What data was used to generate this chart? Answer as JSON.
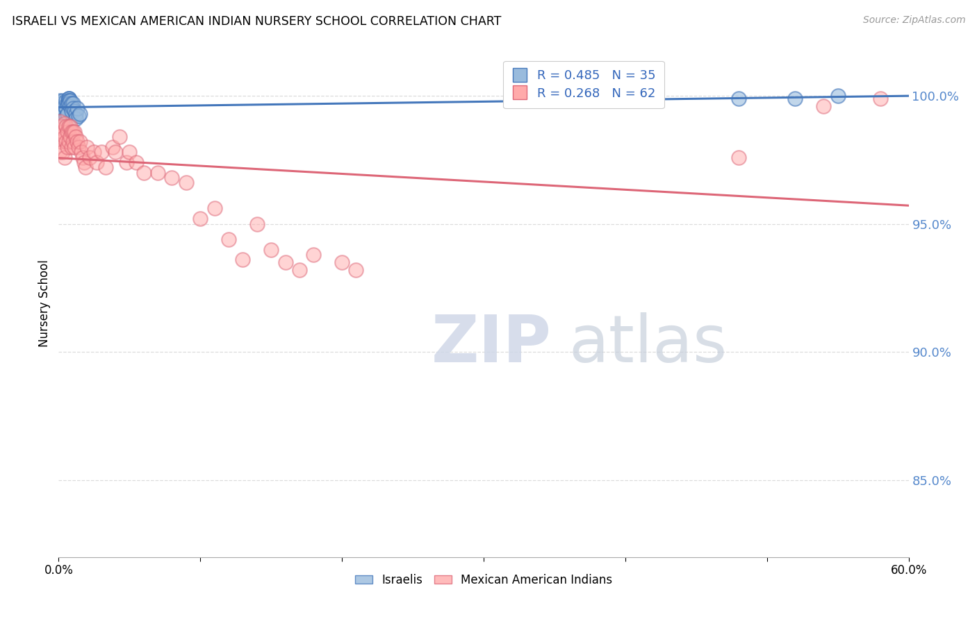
{
  "title": "ISRAELI VS MEXICAN AMERICAN INDIAN NURSERY SCHOOL CORRELATION CHART",
  "source": "Source: ZipAtlas.com",
  "ylabel": "Nursery School",
  "xmin": 0.0,
  "xmax": 0.6,
  "ymin": 0.82,
  "ymax": 1.018,
  "yticks": [
    0.85,
    0.9,
    0.95,
    1.0
  ],
  "ytick_labels": [
    "85.0%",
    "90.0%",
    "95.0%",
    "100.0%"
  ],
  "legend_r1": "R = 0.485   N = 35",
  "legend_r2": "R = 0.268   N = 62",
  "legend_label1": "Israelis",
  "legend_label2": "Mexican American Indians",
  "blue_color": "#99BBDD",
  "pink_color": "#FFAAAA",
  "blue_line_color": "#4477BB",
  "pink_line_color": "#DD6677",
  "watermark_zip": "ZIP",
  "watermark_atlas": "atlas",
  "israelis_x": [
    0.001,
    0.001,
    0.002,
    0.002,
    0.003,
    0.003,
    0.004,
    0.004,
    0.005,
    0.005,
    0.005,
    0.006,
    0.006,
    0.007,
    0.007,
    0.007,
    0.007,
    0.007,
    0.007,
    0.007,
    0.008,
    0.008,
    0.009,
    0.009,
    0.01,
    0.01,
    0.011,
    0.012,
    0.012,
    0.013,
    0.014,
    0.015,
    0.48,
    0.52,
    0.55
  ],
  "israelis_y": [
    0.998,
    0.994,
    0.997,
    0.992,
    0.998,
    0.993,
    0.996,
    0.991,
    0.998,
    0.995,
    0.992,
    0.997,
    0.993,
    0.999,
    0.999,
    0.999,
    0.998,
    0.998,
    0.997,
    0.997,
    0.998,
    0.996,
    0.997,
    0.994,
    0.997,
    0.995,
    0.994,
    0.993,
    0.991,
    0.995,
    0.992,
    0.993,
    0.999,
    0.999,
    1.0
  ],
  "mexican_x": [
    0.001,
    0.001,
    0.001,
    0.002,
    0.002,
    0.003,
    0.003,
    0.004,
    0.004,
    0.004,
    0.005,
    0.005,
    0.006,
    0.006,
    0.007,
    0.007,
    0.008,
    0.008,
    0.009,
    0.009,
    0.01,
    0.01,
    0.011,
    0.011,
    0.012,
    0.013,
    0.014,
    0.015,
    0.016,
    0.017,
    0.018,
    0.019,
    0.02,
    0.022,
    0.025,
    0.027,
    0.03,
    0.033,
    0.038,
    0.04,
    0.043,
    0.048,
    0.05,
    0.055,
    0.06,
    0.07,
    0.08,
    0.09,
    0.1,
    0.11,
    0.12,
    0.13,
    0.14,
    0.15,
    0.16,
    0.17,
    0.18,
    0.2,
    0.21,
    0.48,
    0.54,
    0.58
  ],
  "mexican_y": [
    0.99,
    0.984,
    0.978,
    0.988,
    0.982,
    0.986,
    0.978,
    0.989,
    0.984,
    0.976,
    0.988,
    0.982,
    0.986,
    0.98,
    0.988,
    0.982,
    0.988,
    0.984,
    0.986,
    0.98,
    0.986,
    0.982,
    0.986,
    0.98,
    0.984,
    0.982,
    0.98,
    0.982,
    0.978,
    0.976,
    0.974,
    0.972,
    0.98,
    0.976,
    0.978,
    0.974,
    0.978,
    0.972,
    0.98,
    0.978,
    0.984,
    0.974,
    0.978,
    0.974,
    0.97,
    0.97,
    0.968,
    0.966,
    0.952,
    0.956,
    0.944,
    0.936,
    0.95,
    0.94,
    0.935,
    0.932,
    0.938,
    0.935,
    0.932,
    0.976,
    0.996,
    0.999
  ]
}
